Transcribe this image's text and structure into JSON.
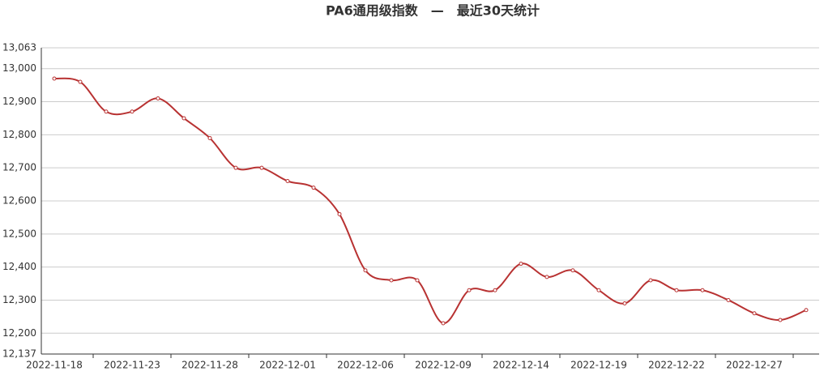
{
  "chart_data": {
    "type": "line",
    "title": "PA6通用级指数　—　最近30天统计",
    "categories": [
      "2022-11-18",
      null,
      null,
      "2022-11-23",
      null,
      null,
      "2022-11-28",
      null,
      null,
      "2022-12-01",
      null,
      null,
      "2022-12-06",
      null,
      null,
      "2022-12-09",
      null,
      null,
      "2022-12-14",
      null,
      null,
      "2022-12-19",
      null,
      null,
      "2022-12-22",
      null,
      null,
      "2022-12-27",
      null,
      null
    ],
    "series": [
      {
        "name": "PA6通用级指数",
        "color": "#b83232",
        "values": [
          12970,
          12960,
          12870,
          12870,
          12910,
          12850,
          12790,
          12700,
          12700,
          12660,
          12640,
          12560,
          12390,
          12360,
          12360,
          12230,
          12330,
          12330,
          12410,
          12370,
          12390,
          12330,
          12290,
          12360,
          12330,
          12330,
          12300,
          12260,
          12240,
          12270
        ]
      }
    ],
    "ylim": [
      12137,
      13063
    ],
    "yticks": [
      {
        "value": 12137,
        "label": "12,137"
      },
      {
        "value": 12200,
        "label": "12,200"
      },
      {
        "value": 12300,
        "label": "12,300"
      },
      {
        "value": 12400,
        "label": "12,400"
      },
      {
        "value": 12500,
        "label": "12,500"
      },
      {
        "value": 12600,
        "label": "12,600"
      },
      {
        "value": 12700,
        "label": "12,700"
      },
      {
        "value": 12800,
        "label": "12,800"
      },
      {
        "value": 12900,
        "label": "12,900"
      },
      {
        "value": 13000,
        "label": "13,000"
      },
      {
        "value": 13063,
        "label": "13,063"
      }
    ],
    "grid": true,
    "smooth": true
  }
}
